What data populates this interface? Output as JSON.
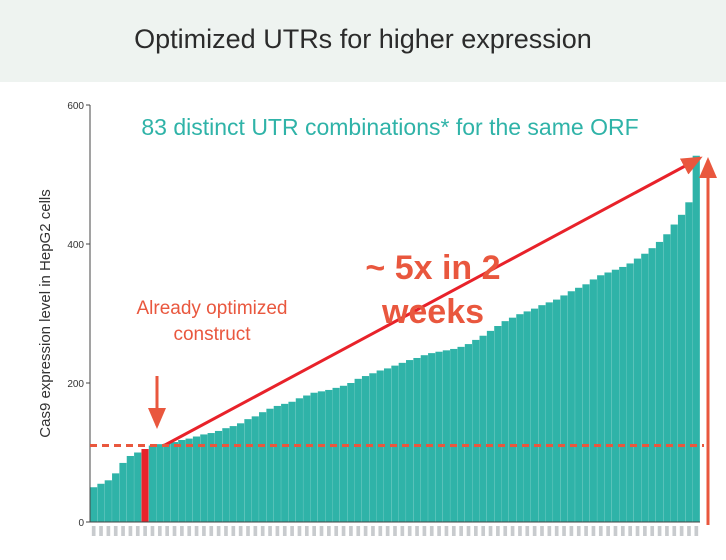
{
  "title": "Optimized UTRs for higher expression",
  "annotations": {
    "top": "83 distinct UTR combinations* for the same ORF",
    "left": "Already optimized construct",
    "big": "~ 5x in 2 weeks"
  },
  "colors": {
    "bar": "#2fb3a8",
    "highlight": "#e8222a",
    "arrow": "#e9573e",
    "dash": "#e9573e"
  },
  "chart_data": {
    "type": "bar",
    "title": "Optimized UTRs for higher expression",
    "ylabel": "Cas9 expression level in HepG2 cells",
    "ylim": [
      0,
      600
    ],
    "yticks": [
      0,
      200,
      400,
      600
    ],
    "baseline_value": 110,
    "highlight_index": 7,
    "values": [
      50,
      55,
      60,
      70,
      85,
      95,
      100,
      105,
      110,
      112,
      113,
      115,
      118,
      120,
      123,
      126,
      128,
      131,
      135,
      138,
      142,
      148,
      152,
      158,
      163,
      167,
      170,
      173,
      178,
      182,
      186,
      188,
      190,
      193,
      196,
      200,
      206,
      210,
      214,
      218,
      221,
      225,
      229,
      233,
      236,
      240,
      243,
      245,
      247,
      249,
      252,
      256,
      262,
      268,
      275,
      282,
      289,
      294,
      299,
      303,
      307,
      312,
      316,
      320,
      326,
      332,
      337,
      342,
      349,
      355,
      359,
      363,
      367,
      372,
      379,
      386,
      394,
      403,
      414,
      428,
      442,
      460,
      527
    ],
    "notes": "83 bars; x-axis tick labels unreadable in source"
  }
}
